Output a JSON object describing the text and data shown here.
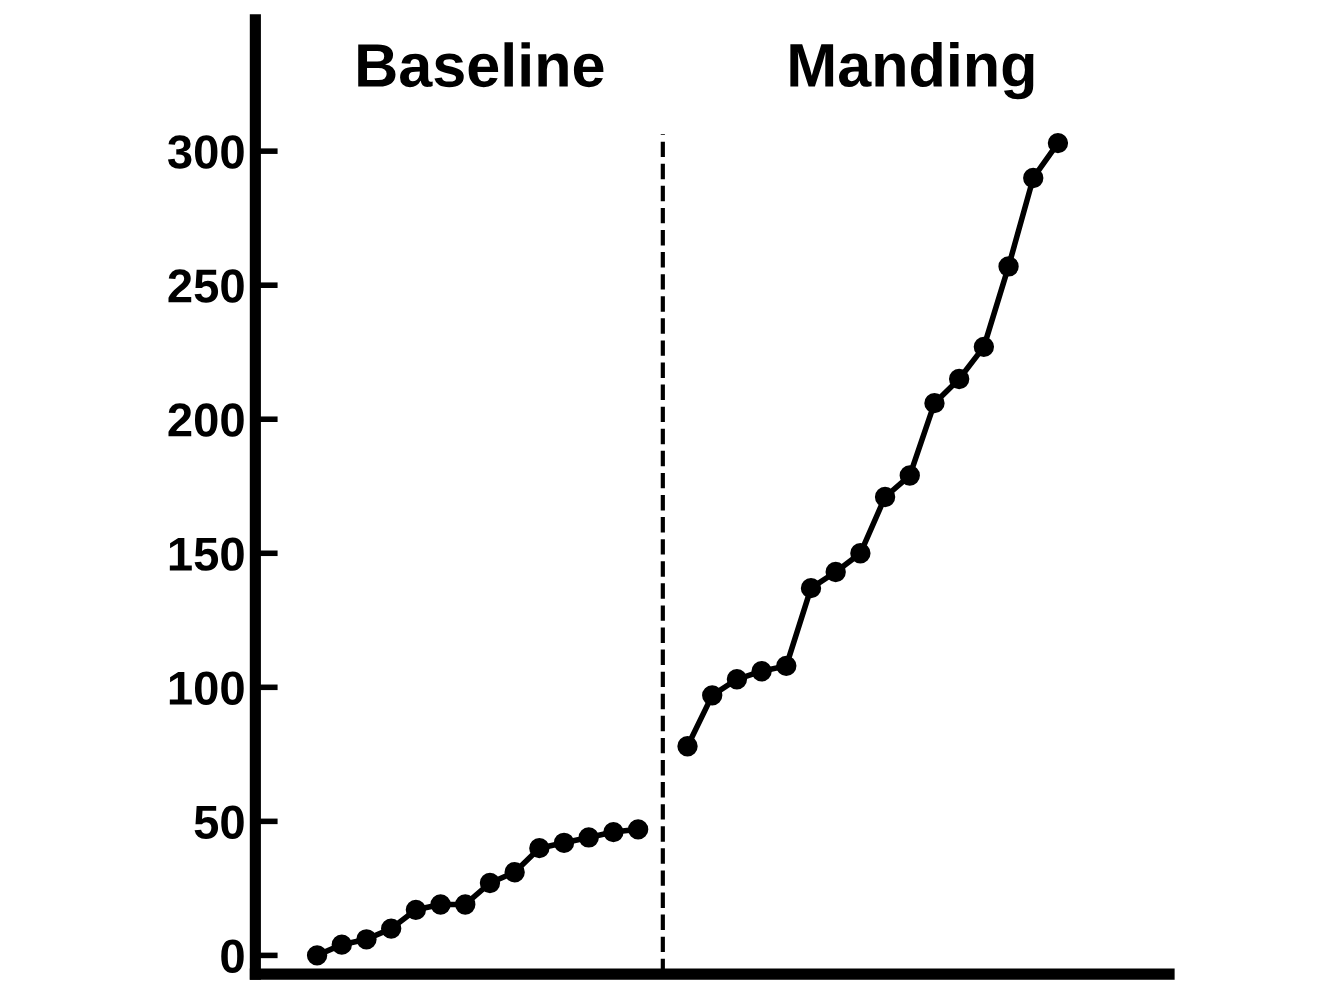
{
  "chart_data": {
    "type": "line",
    "categories": [
      null,
      null,
      null,
      null,
      null,
      null,
      null,
      null,
      null,
      null,
      null,
      null,
      null,
      null,
      null,
      null,
      null,
      null,
      null,
      null,
      null,
      null,
      null,
      null,
      null,
      null,
      null,
      null,
      null,
      null,
      null,
      null,
      null,
      null,
      null,
      null,
      null
    ],
    "series": [
      {
        "color": "#000000",
        "values": [
          null,
          null,
          0,
          4,
          6,
          10,
          17,
          19,
          19,
          27,
          31,
          40,
          42,
          44,
          46,
          47,
          null,
          null,
          null,
          null,
          null,
          null,
          null,
          null,
          null,
          null,
          null,
          null,
          null,
          null,
          null,
          null,
          null,
          null,
          null,
          null,
          null
        ]
      },
      {
        "color": "#000000",
        "values": [
          null,
          null,
          null,
          null,
          null,
          null,
          null,
          null,
          null,
          null,
          null,
          null,
          null,
          null,
          null,
          null,
          null,
          78,
          97,
          103,
          106,
          108,
          137,
          143,
          150,
          171,
          179,
          206,
          215,
          227,
          257,
          290,
          303,
          null,
          null,
          null,
          null
        ]
      }
    ],
    "ylim": [
      -7,
      349
    ],
    "yticks": [
      0,
      50,
      100,
      150,
      200,
      250,
      300
    ],
    "annotations": [
      "Baseline",
      "Manding"
    ],
    "marker": "circle",
    "line_style": "solid",
    "grid": false,
    "legend": false,
    "tick_labels": "y"
  }
}
